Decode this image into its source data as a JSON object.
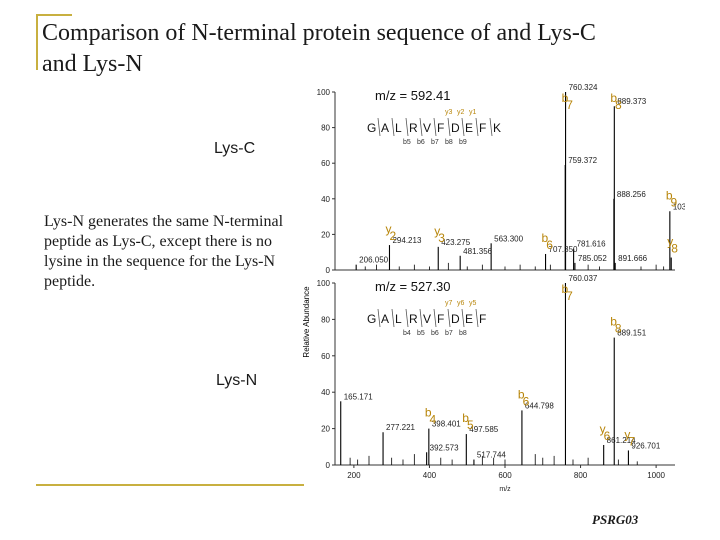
{
  "slide": {
    "title": "Comparison of N-terminal protein sequence of and Lys-C and Lys-N",
    "body": "Lys-N generates the same N-terminal peptide as Lys-C, except there is no lysine in the sequence for the Lys-N peptide.",
    "footer": "PSRG03",
    "accent_color": "#c8b040"
  },
  "chart_data": [
    {
      "type": "bar",
      "label": "Lys-C",
      "mz_annotation": "m/z = 592.41",
      "sequence": [
        "G",
        "A",
        "L",
        "R",
        "V",
        "F",
        "D",
        "E",
        "F",
        "K"
      ],
      "y_labels": [
        "y3",
        "y2",
        "y1"
      ],
      "b_labels": [
        "b5",
        "b6",
        "b7",
        "b8",
        "b9"
      ],
      "xlim": [
        150,
        1050
      ],
      "ylim": [
        0,
        100
      ],
      "yticks": [
        0,
        20,
        40,
        60,
        80,
        100
      ],
      "ylabel": "Relative Abundance",
      "peaks": [
        {
          "mz": 206.05,
          "value": 3,
          "label": "206.050"
        },
        {
          "mz": 294.213,
          "value": 14,
          "label": "294.213",
          "ion": "y2"
        },
        {
          "mz": 423.275,
          "value": 13,
          "label": "423.275",
          "ion": "y3"
        },
        {
          "mz": 481.356,
          "value": 8,
          "label": "481.356"
        },
        {
          "mz": 563.3,
          "value": 15,
          "label": "563.300"
        },
        {
          "mz": 707.35,
          "value": 9,
          "label": "707.350",
          "ion": "b6"
        },
        {
          "mz": 759.372,
          "value": 59,
          "label": "759.372"
        },
        {
          "mz": 760.324,
          "value": 100,
          "label": "760.324",
          "ion": "b7"
        },
        {
          "mz": 781.616,
          "value": 12,
          "label": "781.616"
        },
        {
          "mz": 785.052,
          "value": 4,
          "label": "785.052"
        },
        {
          "mz": 888.256,
          "value": 40,
          "label": "888.256"
        },
        {
          "mz": 889.373,
          "value": 92,
          "label": "889.373",
          "ion": "b8"
        },
        {
          "mz": 891.666,
          "value": 4,
          "label": "891.666"
        },
        {
          "mz": 1036.353,
          "value": 33,
          "label": "1036.353",
          "ion": "b9"
        },
        {
          "mz": 1040,
          "value": 7,
          "label": "",
          "ion": "y8"
        }
      ]
    },
    {
      "type": "bar",
      "label": "Lys-N",
      "mz_annotation": "m/z = 527.30",
      "sequence": [
        "G",
        "A",
        "L",
        "R",
        "V",
        "F",
        "D",
        "E",
        "F"
      ],
      "y_labels": [
        "y7",
        "y6",
        "y5"
      ],
      "b_labels": [
        "b4",
        "b5",
        "b6",
        "b7",
        "b8"
      ],
      "xlim": [
        150,
        1050
      ],
      "ylim": [
        0,
        100
      ],
      "yticks": [
        0,
        20,
        40,
        60,
        80,
        100
      ],
      "ylabel": "Relative Abundance",
      "xlabel": "m/z",
      "xticks": [
        200,
        400,
        600,
        800,
        1000
      ],
      "peaks": [
        {
          "mz": 165.171,
          "value": 35,
          "label": "165.171"
        },
        {
          "mz": 277.221,
          "value": 18,
          "label": "277.221"
        },
        {
          "mz": 392.573,
          "value": 7,
          "label": "392.573"
        },
        {
          "mz": 398.401,
          "value": 20,
          "label": "398.401",
          "ion": "b4"
        },
        {
          "mz": 497.585,
          "value": 17,
          "label": "497.585",
          "ion": "b5"
        },
        {
          "mz": 517.744,
          "value": 3,
          "label": "517.744"
        },
        {
          "mz": 644.798,
          "value": 30,
          "label": "644.798",
          "ion": "b6"
        },
        {
          "mz": 760.037,
          "value": 100,
          "label": "760.037",
          "ion": "b7"
        },
        {
          "mz": 861.214,
          "value": 11,
          "label": "861.214",
          "ion": "y6"
        },
        {
          "mz": 889.151,
          "value": 70,
          "label": "889.151",
          "ion": "b8"
        },
        {
          "mz": 926.701,
          "value": 8,
          "label": "926.701",
          "ion": "y7"
        }
      ]
    }
  ]
}
